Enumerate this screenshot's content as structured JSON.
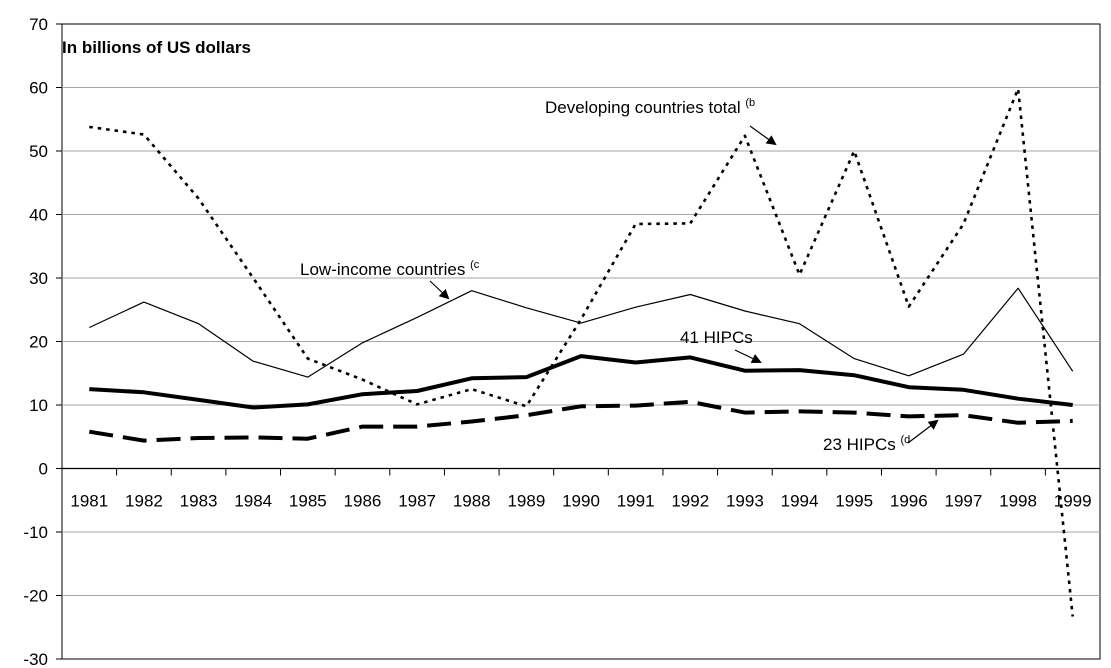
{
  "chart_data": {
    "type": "line",
    "title": "In billions of US dollars",
    "xlabel": "",
    "ylabel": "",
    "ylim": [
      -30,
      70
    ],
    "yticks": [
      -30,
      -20,
      -10,
      0,
      10,
      20,
      30,
      40,
      50,
      60,
      70
    ],
    "grid": "horizontal",
    "categories": [
      "1981",
      "1982",
      "1983",
      "1984",
      "1985",
      "1986",
      "1987",
      "1988",
      "1989",
      "1990",
      "1991",
      "1992",
      "1993",
      "1994",
      "1995",
      "1996",
      "1997",
      "1998",
      "1999"
    ],
    "series": [
      {
        "name": "Developing countries total",
        "superscript": "(b",
        "style": "dotted",
        "values": [
          53.8,
          52.6,
          42.5,
          30,
          17.3,
          14,
          10.1,
          12.5,
          9.8,
          23.5,
          38.5,
          38.6,
          52.4,
          30.5,
          50,
          25.5,
          38.5,
          59.8,
          -23.3
        ]
      },
      {
        "name": "Low-income countries",
        "superscript": "(c",
        "style": "thin",
        "values": [
          22.2,
          26.2,
          22.8,
          16.9,
          14.4,
          19.8,
          23.8,
          28,
          25.3,
          22.9,
          25.4,
          27.4,
          24.8,
          22.8,
          17.3,
          14.6,
          18,
          28.4,
          15.3
        ]
      },
      {
        "name": "41 HIPCs",
        "superscript": "",
        "style": "thick",
        "values": [
          12.5,
          12,
          10.8,
          9.6,
          10.1,
          11.7,
          12.2,
          14.2,
          14.4,
          17.7,
          16.7,
          17.5,
          15.4,
          15.5,
          14.7,
          12.8,
          12.4,
          11,
          10
        ]
      },
      {
        "name": "23 HIPCs",
        "superscript": "(d",
        "style": "dashed",
        "values": [
          5.8,
          4.4,
          4.8,
          4.9,
          4.7,
          6.6,
          6.6,
          7.4,
          8.4,
          9.8,
          9.9,
          10.5,
          8.8,
          9,
          8.8,
          8.2,
          8.4,
          7.2,
          7.5
        ]
      }
    ]
  }
}
